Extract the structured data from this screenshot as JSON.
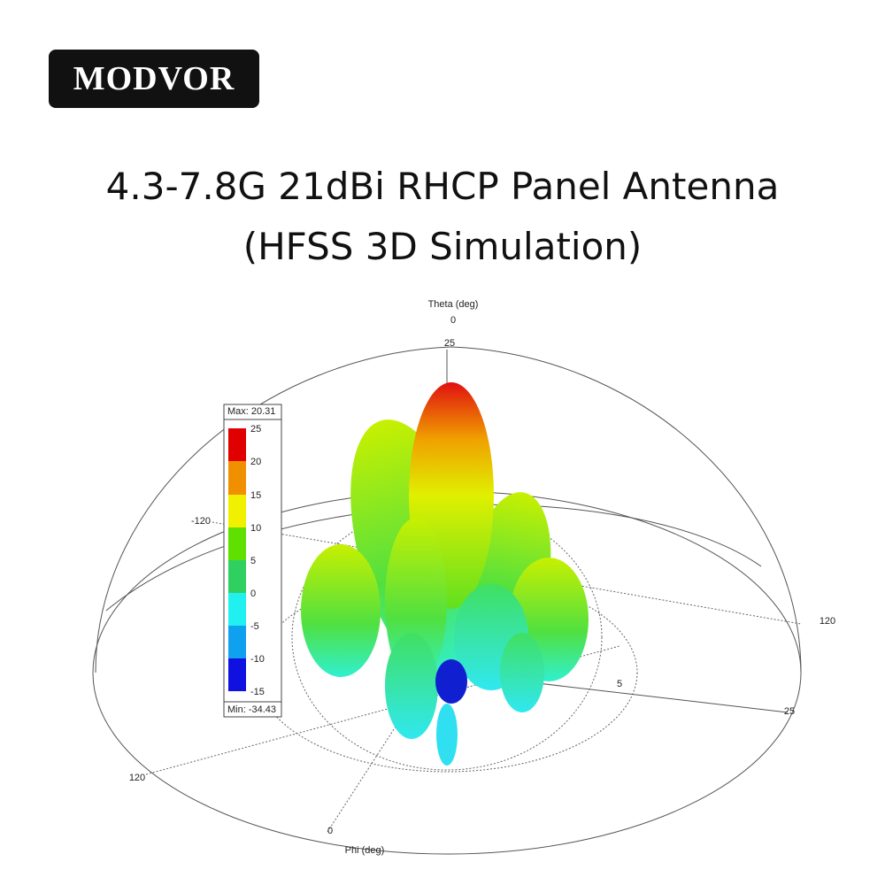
{
  "brand": "MODVOR",
  "title": [
    "4.3-7.8G 21dBi RHCP Panel Antenna",
    "(HFSS 3D Simulation)"
  ],
  "plot": {
    "axis_titles": {
      "theta": "Theta (deg)",
      "phi": "Phi (deg)"
    },
    "axis_ticks": [
      "0",
      "25",
      "-120",
      "120",
      "120",
      "5",
      "25",
      "0"
    ],
    "legend": {
      "max": "Max: 20.31",
      "min": "Min: -34.43",
      "levels": [
        "25",
        "20",
        "15",
        "10",
        "5",
        "0",
        "-5",
        "-10",
        "-15"
      ]
    }
  }
}
